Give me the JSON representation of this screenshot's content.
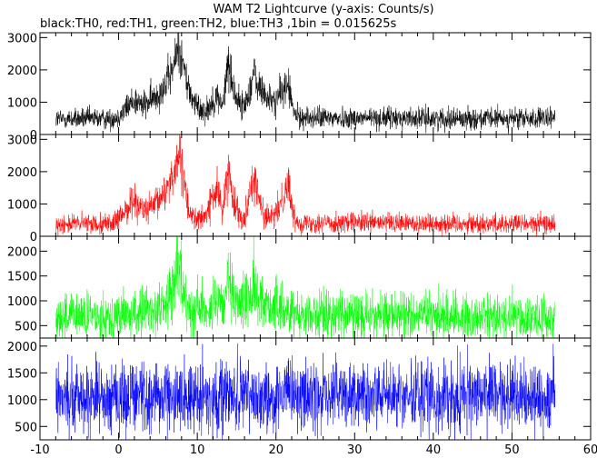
{
  "header": {
    "title": "WAM T2 Lightcurve (y-axis: Counts/s)",
    "subtitle": "black:TH0, red:TH1, green:TH2, blue:TH3 ,1bin = 0.015625s"
  },
  "chart_data": {
    "type": "line",
    "title": "WAM T2 Lightcurve (y-axis: Counts/s)",
    "subtitle": "black:TH0, red:TH1, green:TH2, blue:TH3 ,1bin = 0.015625s",
    "bin_size_s": 0.015625,
    "xlim": [
      -10,
      60
    ],
    "x_ticks": [
      -10,
      0,
      10,
      20,
      30,
      40,
      50,
      60
    ],
    "x_data_range": [
      -8,
      55.5
    ],
    "grid": false,
    "legend": "none",
    "series": [
      {
        "name": "TH0",
        "color": "#000000",
        "ylim": [
          0,
          3150
        ],
        "y_ticks": [
          0,
          1000,
          2000,
          3000
        ],
        "baseline": 480,
        "noise": 160,
        "envelope": [
          [
            -8,
            480
          ],
          [
            -1,
            490
          ],
          [
            0,
            560
          ],
          [
            1,
            820
          ],
          [
            2,
            1080
          ],
          [
            3,
            900
          ],
          [
            4,
            1010
          ],
          [
            5,
            1260
          ],
          [
            6,
            1580
          ],
          [
            7,
            2050
          ],
          [
            7.6,
            2850
          ],
          [
            8.3,
            2050
          ],
          [
            9,
            1300
          ],
          [
            10,
            850
          ],
          [
            11,
            720
          ],
          [
            12,
            1020
          ],
          [
            12.6,
            1150
          ],
          [
            13.3,
            900
          ],
          [
            13.9,
            2300
          ],
          [
            14.6,
            1400
          ],
          [
            15.3,
            1000
          ],
          [
            16,
            850
          ],
          [
            16.7,
            1450
          ],
          [
            17.2,
            1900
          ],
          [
            17.8,
            1400
          ],
          [
            18.4,
            1350
          ],
          [
            19.1,
            1050
          ],
          [
            20,
            1050
          ],
          [
            21,
            1420
          ],
          [
            21.6,
            1550
          ],
          [
            22.2,
            700
          ],
          [
            23,
            520
          ],
          [
            55.5,
            480
          ]
        ]
      },
      {
        "name": "TH1",
        "color": "#ff0000",
        "ylim": [
          0,
          3150
        ],
        "y_ticks": [
          0,
          1000,
          2000,
          3000
        ],
        "baseline": 380,
        "noise": 150,
        "envelope": [
          [
            -8,
            380
          ],
          [
            -1,
            400
          ],
          [
            0,
            500
          ],
          [
            1,
            850
          ],
          [
            2,
            1150
          ],
          [
            3,
            820
          ],
          [
            4,
            820
          ],
          [
            5,
            1050
          ],
          [
            6,
            1450
          ],
          [
            7,
            1950
          ],
          [
            7.6,
            2550
          ],
          [
            8.3,
            1650
          ],
          [
            9,
            750
          ],
          [
            10,
            500
          ],
          [
            11,
            600
          ],
          [
            12,
            1250
          ],
          [
            12.6,
            1400
          ],
          [
            13.3,
            800
          ],
          [
            13.9,
            2050
          ],
          [
            14.6,
            1150
          ],
          [
            15.3,
            700
          ],
          [
            16,
            550
          ],
          [
            16.7,
            1450
          ],
          [
            17.2,
            1850
          ],
          [
            17.8,
            1200
          ],
          [
            18.4,
            700
          ],
          [
            19.1,
            550
          ],
          [
            20,
            650
          ],
          [
            21,
            1300
          ],
          [
            21.6,
            1700
          ],
          [
            22.2,
            600
          ],
          [
            23,
            420
          ],
          [
            55.5,
            380
          ]
        ]
      },
      {
        "name": "TH2",
        "color": "#00ff00",
        "ylim": [
          250,
          2300
        ],
        "y_ticks": [
          500,
          1000,
          1500,
          2000
        ],
        "baseline": 680,
        "noise": 230,
        "envelope": [
          [
            -8,
            680
          ],
          [
            2,
            700
          ],
          [
            3,
            800
          ],
          [
            5,
            850
          ],
          [
            6,
            950
          ],
          [
            7,
            1300
          ],
          [
            7.6,
            1750
          ],
          [
            8.3,
            1100
          ],
          [
            9,
            850
          ],
          [
            12,
            850
          ],
          [
            13.3,
            900
          ],
          [
            13.9,
            1350
          ],
          [
            14.6,
            950
          ],
          [
            16.7,
            1050
          ],
          [
            17.2,
            1400
          ],
          [
            17.8,
            1000
          ],
          [
            20,
            850
          ],
          [
            22.2,
            800
          ],
          [
            23,
            720
          ],
          [
            40,
            700
          ],
          [
            55.5,
            650
          ]
        ]
      },
      {
        "name": "TH3",
        "color": "#0000ff",
        "ylim": [
          250,
          2150
        ],
        "y_ticks": [
          500,
          1000,
          1500,
          2000
        ],
        "baseline": 1060,
        "noise": 330,
        "envelope": [
          [
            -8,
            1060
          ],
          [
            55.5,
            1060
          ]
        ]
      }
    ]
  }
}
